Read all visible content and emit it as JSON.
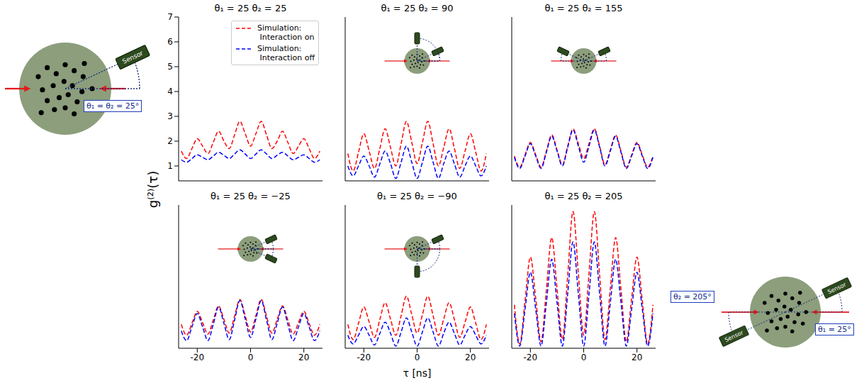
{
  "chart_data": [
    {
      "type": "line",
      "title": "θ₁ = 25 θ₂ = 25",
      "x": [
        -26,
        -24,
        -22,
        -20,
        -18,
        -16,
        -14,
        -12,
        -10,
        -8,
        -6,
        -4,
        -2,
        0,
        2,
        4,
        6,
        8,
        10,
        12,
        14,
        16,
        18,
        20,
        22,
        24,
        26
      ],
      "xlim": [
        -27,
        27
      ],
      "xticks": [
        -20,
        0,
        20
      ],
      "ylim": [
        0.4,
        7
      ],
      "yticks": [
        1,
        2,
        3,
        4,
        5,
        6,
        7
      ],
      "tick_labels": "y",
      "legend": "upper right",
      "series": [
        {
          "name": "Simulation:\n Interaction on",
          "color": "#ff0000",
          "line_style": "dashed",
          "values": [
            1.6,
            1.3,
            1.7,
            2.1,
            1.8,
            1.5,
            1.95,
            2.4,
            2.0,
            1.7,
            2.25,
            2.8,
            2.3,
            1.8,
            2.3,
            2.8,
            2.25,
            1.7,
            2.0,
            2.4,
            1.95,
            1.5,
            1.8,
            2.1,
            1.7,
            1.3,
            1.6
          ]
        },
        {
          "name": "Simulation:\n Interaction off",
          "color": "#0000ff",
          "line_style": "dashed",
          "values": [
            1.25,
            1.15,
            1.3,
            1.45,
            1.35,
            1.25,
            1.4,
            1.55,
            1.43,
            1.3,
            1.48,
            1.65,
            1.48,
            1.3,
            1.48,
            1.65,
            1.48,
            1.3,
            1.43,
            1.55,
            1.4,
            1.25,
            1.35,
            1.45,
            1.3,
            1.15,
            1.25
          ]
        }
      ]
    },
    {
      "type": "line",
      "title": "θ₁ = 25 θ₂ = 90",
      "x": [
        -26,
        -24,
        -22,
        -20,
        -18,
        -16,
        -14,
        -12,
        -10,
        -8,
        -6,
        -4,
        -2,
        0,
        2,
        4,
        6,
        8,
        10,
        12,
        14,
        16,
        18,
        20,
        22,
        24,
        26
      ],
      "xlim": [
        -27,
        27
      ],
      "xticks": [
        -20,
        0,
        20
      ],
      "ylim": [
        0.4,
        7
      ],
      "yticks": [
        1,
        2,
        3,
        4,
        5,
        6,
        7
      ],
      "tick_labels": false,
      "detector_angles": [
        25,
        90
      ],
      "series": [
        {
          "color": "#ff0000",
          "line_style": "dashed",
          "values": [
            1.5,
            0.8,
            1.55,
            2.3,
            1.6,
            0.9,
            1.7,
            2.5,
            1.75,
            1.0,
            1.9,
            2.8,
            1.95,
            1.1,
            1.95,
            2.8,
            1.9,
            1.0,
            1.75,
            2.5,
            1.7,
            0.9,
            1.6,
            2.3,
            1.55,
            0.8,
            1.5
          ]
        },
        {
          "color": "#0000ff",
          "line_style": "dashed",
          "values": [
            1.0,
            0.6,
            1.0,
            1.4,
            1.0,
            0.55,
            1.08,
            1.6,
            1.1,
            0.5,
            1.15,
            1.8,
            1.15,
            0.5,
            1.15,
            1.8,
            1.15,
            0.5,
            1.1,
            1.6,
            1.08,
            0.55,
            1.0,
            1.4,
            1.0,
            0.6,
            1.0
          ]
        }
      ]
    },
    {
      "type": "line",
      "title": "θ₁ = 25 θ₂ = 155",
      "x": [
        -26,
        -24,
        -22,
        -20,
        -18,
        -16,
        -14,
        -12,
        -10,
        -8,
        -6,
        -4,
        -2,
        0,
        2,
        4,
        6,
        8,
        10,
        12,
        14,
        16,
        18,
        20,
        22,
        24,
        26
      ],
      "xlim": [
        -27,
        27
      ],
      "xticks": [
        -20,
        0,
        20
      ],
      "ylim": [
        0.4,
        7
      ],
      "yticks": [
        1,
        2,
        3,
        4,
        5,
        6,
        7
      ],
      "tick_labels": false,
      "detector_angles": [
        25,
        155
      ],
      "series": [
        {
          "color": "#ff0000",
          "line_style": "dashed",
          "values": [
            1.4,
            0.95,
            1.45,
            1.95,
            1.45,
            0.95,
            1.6,
            2.25,
            1.65,
            1.05,
            1.8,
            2.5,
            1.9,
            1.3,
            1.9,
            2.5,
            1.8,
            1.05,
            1.65,
            2.25,
            1.6,
            0.95,
            1.45,
            1.95,
            1.45,
            0.95,
            1.4
          ]
        },
        {
          "color": "#0000ff",
          "line_style": "dashed",
          "values": [
            1.35,
            0.9,
            1.4,
            1.9,
            1.4,
            0.9,
            1.55,
            2.2,
            1.6,
            1.0,
            1.75,
            2.45,
            1.8,
            1.15,
            1.8,
            2.45,
            1.75,
            1.0,
            1.6,
            2.2,
            1.55,
            0.9,
            1.4,
            1.9,
            1.4,
            0.9,
            1.35
          ]
        }
      ]
    },
    {
      "type": "line",
      "title": "θ₁ = 25 θ₂ = −25",
      "x": [
        -26,
        -24,
        -22,
        -20,
        -18,
        -16,
        -14,
        -12,
        -10,
        -8,
        -6,
        -4,
        -2,
        0,
        2,
        4,
        6,
        8,
        10,
        12,
        14,
        16,
        18,
        20,
        22,
        24,
        26
      ],
      "xlim": [
        -27,
        27
      ],
      "xticks": [
        -20,
        0,
        20
      ],
      "ylim": [
        0.4,
        7
      ],
      "yticks": [
        1,
        2,
        3,
        4,
        5,
        6,
        7
      ],
      "tick_labels": "x",
      "detector_angles": [
        25,
        -25
      ],
      "series": [
        {
          "color": "#ff0000",
          "line_style": "dashed",
          "values": [
            1.5,
            1.0,
            1.55,
            2.1,
            1.58,
            1.05,
            1.7,
            2.35,
            1.73,
            1.1,
            1.88,
            2.65,
            1.9,
            1.15,
            1.9,
            2.65,
            1.88,
            1.1,
            1.73,
            2.35,
            1.7,
            1.05,
            1.58,
            2.1,
            1.55,
            1.0,
            1.5
          ]
        },
        {
          "color": "#0000ff",
          "line_style": "dashed",
          "values": [
            1.2,
            0.75,
            1.38,
            2.0,
            1.38,
            0.75,
            1.5,
            2.3,
            1.55,
            0.8,
            1.7,
            2.6,
            1.75,
            0.9,
            1.75,
            2.6,
            1.7,
            0.8,
            1.55,
            2.3,
            1.5,
            0.75,
            1.38,
            2.0,
            1.38,
            0.75,
            1.2
          ]
        }
      ]
    },
    {
      "type": "line",
      "title": "θ₁ = 25 θ₂ = −90",
      "x": [
        -26,
        -24,
        -22,
        -20,
        -18,
        -16,
        -14,
        -12,
        -10,
        -8,
        -6,
        -4,
        -2,
        0,
        2,
        4,
        6,
        8,
        10,
        12,
        14,
        16,
        18,
        20,
        22,
        24,
        26
      ],
      "xlim": [
        -27,
        27
      ],
      "xticks": [
        -20,
        0,
        20
      ],
      "ylim": [
        0.4,
        7
      ],
      "yticks": [
        1,
        2,
        3,
        4,
        5,
        6,
        7
      ],
      "tick_labels": "x",
      "detector_angles": [
        25,
        -90
      ],
      "series": [
        {
          "color": "#ff0000",
          "line_style": "dashed",
          "values": [
            1.5,
            0.8,
            1.55,
            2.3,
            1.6,
            0.9,
            1.72,
            2.5,
            1.75,
            1.0,
            1.9,
            2.8,
            1.95,
            1.1,
            1.95,
            2.8,
            1.9,
            1.0,
            1.75,
            2.5,
            1.72,
            0.9,
            1.6,
            2.3,
            1.55,
            0.8,
            1.5
          ]
        },
        {
          "color": "#0000ff",
          "line_style": "dashed",
          "values": [
            1.0,
            0.6,
            1.0,
            1.4,
            1.0,
            0.55,
            1.08,
            1.6,
            1.1,
            0.5,
            1.15,
            1.8,
            1.15,
            0.5,
            1.15,
            1.8,
            1.15,
            0.5,
            1.1,
            1.6,
            1.08,
            0.55,
            1.0,
            1.4,
            1.0,
            0.6,
            1.0
          ]
        }
      ]
    },
    {
      "type": "line",
      "title": "θ₁ = 25 θ₂ = 205",
      "x": [
        -26,
        -24,
        -22,
        -20,
        -18,
        -16,
        -14,
        -12,
        -10,
        -8,
        -6,
        -4,
        -2,
        0,
        2,
        4,
        6,
        8,
        10,
        12,
        14,
        16,
        18,
        20,
        22,
        24,
        26
      ],
      "xlim": [
        -27,
        27
      ],
      "xticks": [
        -20,
        0,
        20
      ],
      "ylim": [
        0.4,
        7
      ],
      "yticks": [
        1,
        2,
        3,
        4,
        5,
        6,
        7
      ],
      "tick_labels": "x",
      "series": [
        {
          "color": "#ff0000",
          "line_style": "dashed",
          "values": [
            2.4,
            0.6,
            2.6,
            4.6,
            2.7,
            0.7,
            3.1,
            5.5,
            3.15,
            0.8,
            3.75,
            6.7,
            3.85,
            1.0,
            3.85,
            6.7,
            3.75,
            0.8,
            3.15,
            5.5,
            3.1,
            0.7,
            2.7,
            4.6,
            2.6,
            0.6,
            2.4
          ]
        },
        {
          "color": "#0000ff",
          "line_style": "dashed",
          "values": [
            2.0,
            0.5,
            2.2,
            3.9,
            2.2,
            0.5,
            2.5,
            4.5,
            2.5,
            0.5,
            2.9,
            5.3,
            2.9,
            0.5,
            2.9,
            5.3,
            2.9,
            0.5,
            2.5,
            4.5,
            2.5,
            0.5,
            2.2,
            3.9,
            2.2,
            0.5,
            2.0
          ]
        }
      ]
    }
  ],
  "shared_axis_labels": {
    "x": "τ [ns]",
    "y": "g⁽²⁾(τ)"
  },
  "diagrams": [
    {
      "detector_angles": [
        25,
        25
      ],
      "sensor_label": "Sensor",
      "angle_labels": [
        "θ₁ = θ₂ = 25°"
      ]
    },
    {
      "detector_angles": [
        25,
        205
      ],
      "sensor_label": "Sensor",
      "angle_labels": [
        "θ₁ = 25°",
        "θ₂ = 205°"
      ]
    }
  ]
}
